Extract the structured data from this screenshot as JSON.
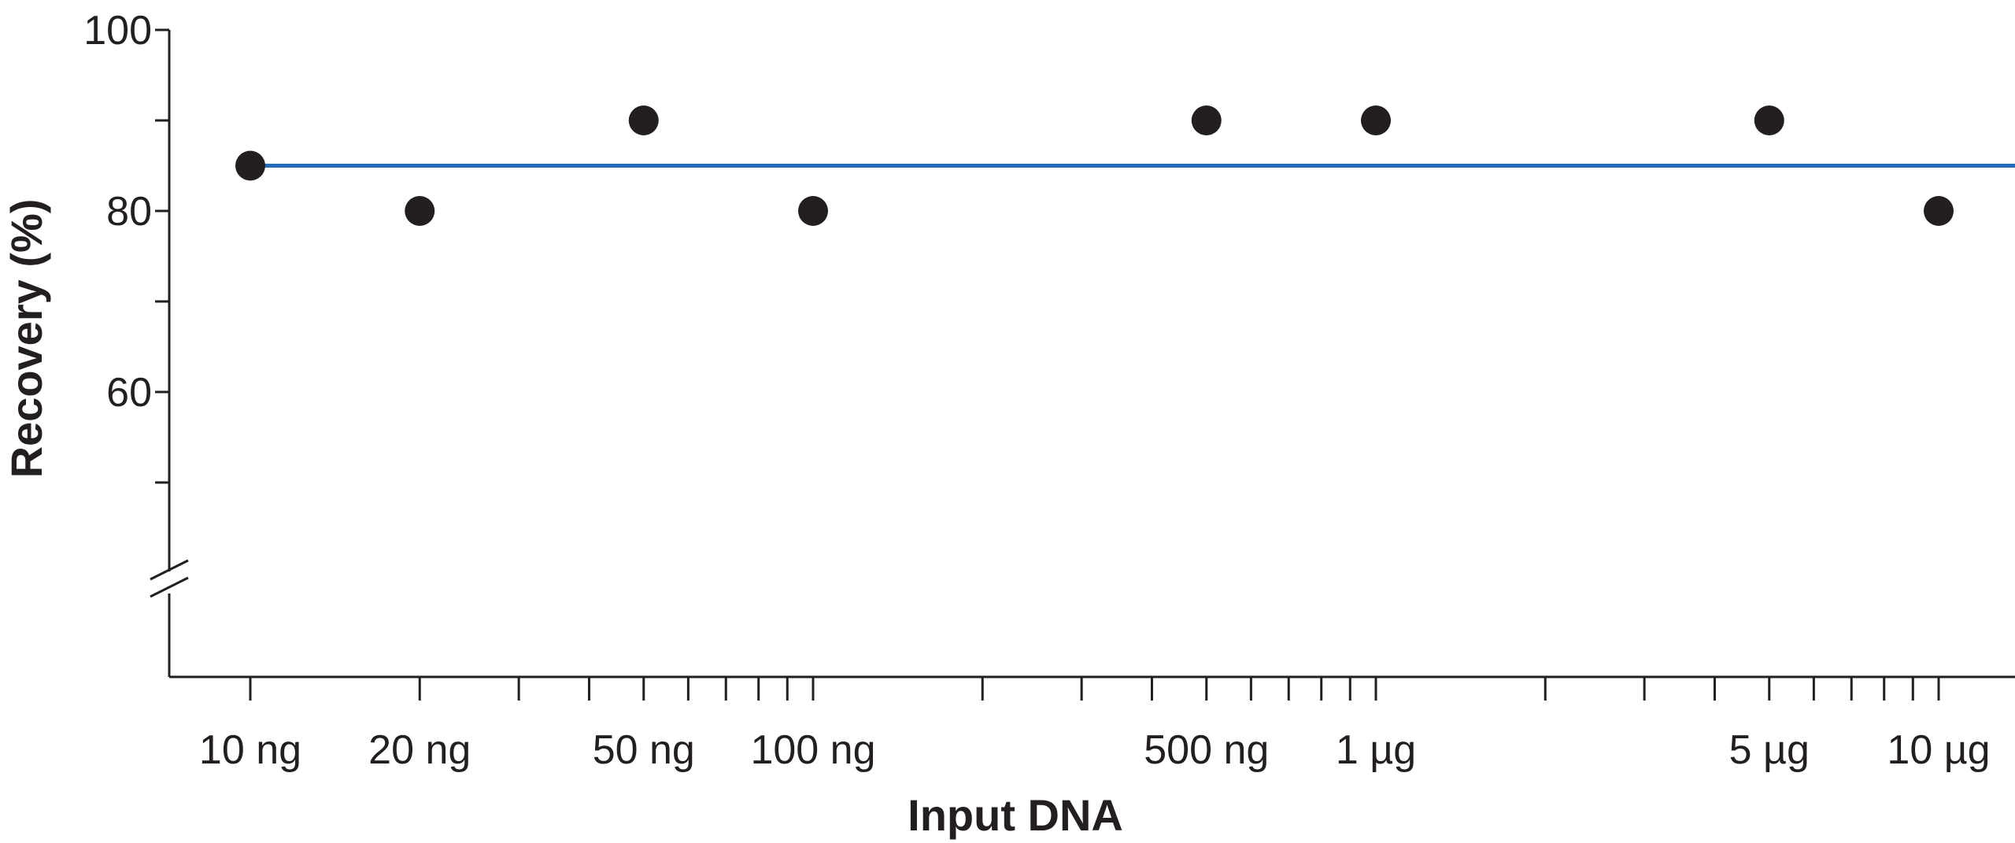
{
  "chart_data": {
    "type": "scatter",
    "title": "",
    "xlabel": "Input DNA",
    "ylabel": "Recovery (%)",
    "x_scale": "log",
    "x_unit": "ng",
    "xlim": [
      8,
      15000
    ],
    "ylim": [
      40,
      100
    ],
    "y_axis_break": true,
    "grid": false,
    "x_ticks": [
      {
        "value": 10,
        "label": "10 ng"
      },
      {
        "value": 20,
        "label": "20 ng"
      },
      {
        "value": 50,
        "label": "50 ng"
      },
      {
        "value": 100,
        "label": "100 ng"
      },
      {
        "value": 500,
        "label": "500 ng"
      },
      {
        "value": 1000,
        "label": "1 µg"
      },
      {
        "value": 5000,
        "label": "5 µg"
      },
      {
        "value": 10000,
        "label": "10 µg"
      }
    ],
    "y_ticks": [
      {
        "value": 100,
        "label": "100"
      },
      {
        "value": 90,
        "label": ""
      },
      {
        "value": 80,
        "label": "80"
      },
      {
        "value": 70,
        "label": ""
      },
      {
        "value": 60,
        "label": "60"
      },
      {
        "value": 50,
        "label": ""
      }
    ],
    "series": [
      {
        "x": [
          10,
          20,
          50,
          100,
          500,
          1000,
          5000,
          10000
        ],
        "y": [
          85,
          80,
          90,
          80,
          90,
          90,
          90,
          80
        ],
        "color": "#231f20"
      }
    ],
    "reference_line": {
      "y": 85,
      "color": "#1f6cc1"
    }
  }
}
